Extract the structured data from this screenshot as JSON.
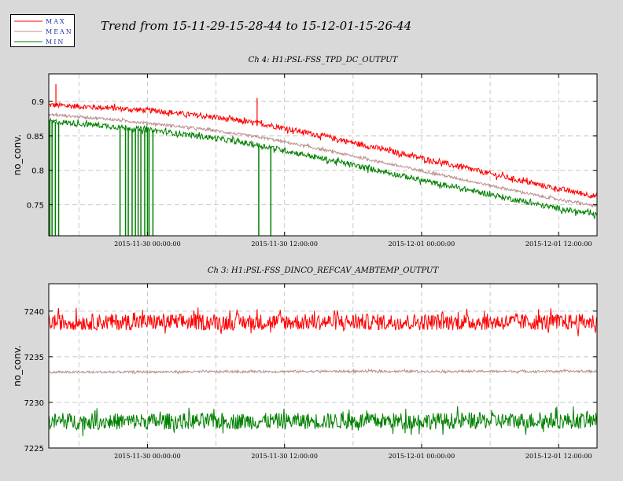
{
  "title": "Trend from 15-11-29-15-28-44 to 15-12-01-15-26-44",
  "legend": [
    {
      "label": "MAX",
      "color": "#ff0000"
    },
    {
      "label": "MEAN",
      "color": "#bc8f8f"
    },
    {
      "label": "MIN",
      "color": "#008000"
    }
  ],
  "chart_data": [
    {
      "type": "line",
      "title": "Ch 4: H1:PSL-FSS_TPD_DC_OUTPUT",
      "ylabel": "no_conv.",
      "xlim": [
        0,
        1
      ],
      "ylim": [
        0.705,
        0.94
      ],
      "yticks": [
        0.75,
        0.8,
        0.85,
        0.9
      ],
      "ytick_labels": [
        "0.75",
        "0.8",
        "0.85",
        "0.9"
      ],
      "xtick_positions": [
        0.18,
        0.43,
        0.68,
        0.93
      ],
      "xtick_labels": [
        "2015-11-30 00:00:00",
        "2015-11-30 12:00:00",
        "2015-12-01 00:00:00",
        "2015-12-01 12:00:00"
      ],
      "grid": true,
      "series": [
        {
          "name": "MAX",
          "color": "#ff0000",
          "points": [
            [
              0,
              0.895
            ],
            [
              0.1,
              0.891
            ],
            [
              0.2,
              0.886
            ],
            [
              0.3,
              0.877
            ],
            [
              0.4,
              0.866
            ],
            [
              0.5,
              0.85
            ],
            [
              0.6,
              0.832
            ],
            [
              0.7,
              0.814
            ],
            [
              0.8,
              0.796
            ],
            [
              0.9,
              0.778
            ],
            [
              1,
              0.762
            ]
          ],
          "noise": 0.004,
          "spikes": [
            [
              0.013,
              0.925
            ],
            [
              0.38,
              0.905
            ]
          ]
        },
        {
          "name": "MEAN",
          "color": "#bc8f8f",
          "points": [
            [
              0,
              0.881
            ],
            [
              0.1,
              0.875
            ],
            [
              0.2,
              0.867
            ],
            [
              0.3,
              0.858
            ],
            [
              0.4,
              0.846
            ],
            [
              0.5,
              0.83
            ],
            [
              0.6,
              0.813
            ],
            [
              0.7,
              0.796
            ],
            [
              0.8,
              0.779
            ],
            [
              0.9,
              0.762
            ],
            [
              1,
              0.748
            ]
          ],
          "noise": 0.002,
          "spikes": []
        },
        {
          "name": "MIN",
          "color": "#008000",
          "points": [
            [
              0,
              0.871
            ],
            [
              0.1,
              0.865
            ],
            [
              0.2,
              0.857
            ],
            [
              0.3,
              0.847
            ],
            [
              0.4,
              0.834
            ],
            [
              0.5,
              0.817
            ],
            [
              0.6,
              0.8
            ],
            [
              0.7,
              0.782
            ],
            [
              0.8,
              0.766
            ],
            [
              0.9,
              0.749
            ],
            [
              1,
              0.735
            ]
          ],
          "noise": 0.004,
          "dropouts": [
            0.002,
            0.006,
            0.012,
            0.018,
            0.13,
            0.14,
            0.145,
            0.152,
            0.158,
            0.163,
            0.168,
            0.175,
            0.18,
            0.183,
            0.19,
            0.383,
            0.405
          ]
        }
      ]
    },
    {
      "type": "line",
      "title": "Ch 3: H1:PSL-FSS_DINCO_REFCAV_AMBTEMP_OUTPUT",
      "ylabel": "no_conv.",
      "xlim": [
        0,
        1
      ],
      "ylim": [
        7225,
        7243
      ],
      "yticks": [
        7225,
        7230,
        7235,
        7240
      ],
      "ytick_labels": [
        "7225",
        "7230",
        "7235",
        "7240"
      ],
      "xtick_positions": [
        0.18,
        0.43,
        0.68,
        0.93
      ],
      "xtick_labels": [
        "2015-11-30 00:00:00",
        "2015-11-30 12:00:00",
        "2015-12-01 00:00:00",
        "2015-12-01 12:00:00"
      ],
      "grid": true,
      "series": [
        {
          "name": "MAX",
          "color": "#ff0000",
          "points": [
            [
              0,
              7238.8
            ],
            [
              1,
              7238.8
            ]
          ],
          "noise": 0.9,
          "spikes": []
        },
        {
          "name": "MEAN",
          "color": "#bc8f8f",
          "points": [
            [
              0,
              7233.3
            ],
            [
              0.5,
              7233.4
            ],
            [
              1,
              7233.4
            ]
          ],
          "noise": 0.12,
          "spikes": []
        },
        {
          "name": "MIN",
          "color": "#008000",
          "points": [
            [
              0,
              7227.9
            ],
            [
              1,
              7228.0
            ]
          ],
          "noise": 0.9,
          "spikes": []
        }
      ]
    }
  ]
}
